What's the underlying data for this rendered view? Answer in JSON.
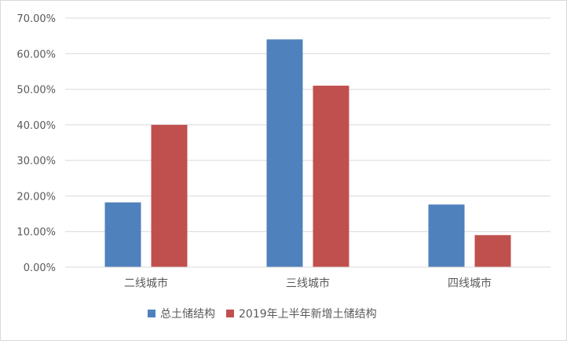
{
  "chart_data": {
    "type": "bar",
    "categories": [
      "二线城市",
      "三线城市",
      "四线城市"
    ],
    "series": [
      {
        "name": "总土储结构",
        "values": [
          0.182,
          0.64,
          0.176
        ],
        "color": "#4f81bd"
      },
      {
        "name": "2019年上半年新增土储结构",
        "values": [
          0.4,
          0.51,
          0.09
        ],
        "color": "#c0504d"
      }
    ],
    "ylim": [
      0,
      0.7
    ],
    "yticks": [
      0,
      0.1,
      0.2,
      0.3,
      0.4,
      0.5,
      0.6,
      0.7
    ],
    "ytick_labels": [
      "0.00%",
      "10.00%",
      "20.00%",
      "30.00%",
      "40.00%",
      "50.00%",
      "60.00%",
      "70.00%"
    ],
    "grid": true,
    "legend_position": "bottom",
    "xlabel": "",
    "ylabel": ""
  }
}
